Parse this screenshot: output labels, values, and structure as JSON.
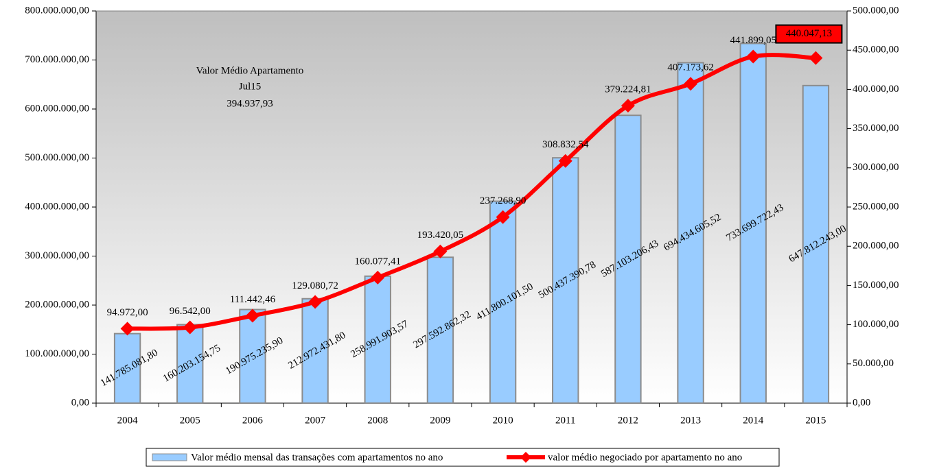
{
  "chart_data": {
    "type": "bar",
    "categories": [
      "2004",
      "2005",
      "2006",
      "2007",
      "2008",
      "2009",
      "2010",
      "2011",
      "2012",
      "2013",
      "2014",
      "2015"
    ],
    "series": [
      {
        "name": "Valor médio mensal das transações com apartamentos no ano",
        "type": "bar",
        "color": "#99ccff",
        "values": [
          141785081.8,
          160203154.75,
          190975235.9,
          212972431.8,
          258991903.57,
          297592862.32,
          411800101.5,
          500437390.78,
          587103206.43,
          694434605.52,
          733699722.43,
          647812243.0
        ],
        "value_labels": [
          "141.785.081,80",
          "160.203.154,75",
          "190.975.235,90",
          "212.972.431,80",
          "258.991.903,57",
          "297.592.862,32",
          "411.800.101,50",
          "500.437.390,78",
          "587.103.206,43",
          "694.434.605,52",
          "733.699.722,43",
          "647.812.243,00"
        ]
      },
      {
        "name": "valor médio negociado por apartamento no ano",
        "type": "line",
        "axis": "y2",
        "color": "#ff0000",
        "values": [
          94972.0,
          96542.0,
          111442.46,
          129080.72,
          160077.41,
          193420.05,
          237268.9,
          308832.54,
          379224.81,
          407173.62,
          441899.05,
          440047.13
        ],
        "value_labels": [
          "94.972,00",
          "96.542,00",
          "111.442,46",
          "129.080,72",
          "160.077,41",
          "193.420,05",
          "237.268,90",
          "308.832,54",
          "379.224,81",
          "407.173,62",
          "441.899,05",
          "440.047,13"
        ]
      }
    ],
    "annotations": [
      "Valor Médio Apartamento",
      "Jul15",
      "394.937,93"
    ],
    "ylim": [
      0,
      800000000
    ],
    "yticks": [
      {
        "value": 0,
        "label": "0,00"
      },
      {
        "value": 100000000,
        "label": "100.000.000,00"
      },
      {
        "value": 200000000,
        "label": "200.000.000,00"
      },
      {
        "value": 300000000,
        "label": "300.000.000,00"
      },
      {
        "value": 400000000,
        "label": "400.000.000,00"
      },
      {
        "value": 500000000,
        "label": "500.000.000,00"
      },
      {
        "value": 600000000,
        "label": "600.000.000,00"
      },
      {
        "value": 700000000,
        "label": "700.000.000,00"
      },
      {
        "value": 800000000,
        "label": "800.000.000,00"
      }
    ],
    "y2lim": [
      0,
      500000
    ],
    "y2ticks": [
      {
        "value": 0,
        "label": "0,00"
      },
      {
        "value": 50000,
        "label": "50.000,00"
      },
      {
        "value": 100000,
        "label": "100.000,00"
      },
      {
        "value": 150000,
        "label": "150.000,00"
      },
      {
        "value": 200000,
        "label": "200.000,00"
      },
      {
        "value": 250000,
        "label": "250.000,00"
      },
      {
        "value": 300000,
        "label": "300.000,00"
      },
      {
        "value": 350000,
        "label": "350.000,00"
      },
      {
        "value": 400000,
        "label": "400.000,00"
      },
      {
        "value": 450000,
        "label": "450.000,00"
      },
      {
        "value": 500000,
        "label": "500.000,00"
      }
    ],
    "legend": "bottom"
  }
}
